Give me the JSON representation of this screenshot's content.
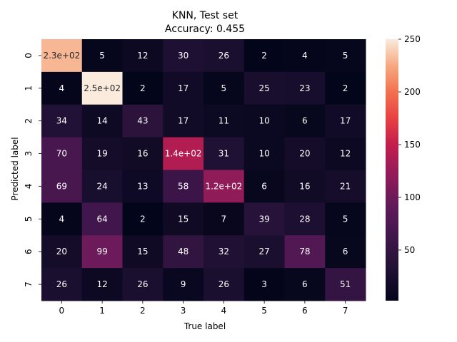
{
  "chart_data": {
    "type": "heatmap",
    "title_line1": "KNN, Test set",
    "title_line2": "Accuracy: 0.455",
    "xlabel": "True label",
    "ylabel": "Predicted label",
    "x_categories": [
      "0",
      "1",
      "2",
      "3",
      "4",
      "5",
      "6",
      "7"
    ],
    "y_categories": [
      "0",
      "1",
      "2",
      "3",
      "4",
      "5",
      "6",
      "7"
    ],
    "values": [
      [
        230,
        5,
        12,
        30,
        26,
        2,
        4,
        5
      ],
      [
        4,
        250,
        2,
        17,
        5,
        25,
        23,
        2
      ],
      [
        34,
        14,
        43,
        17,
        11,
        10,
        6,
        17
      ],
      [
        70,
        19,
        16,
        140,
        31,
        10,
        20,
        12
      ],
      [
        69,
        24,
        13,
        58,
        120,
        6,
        16,
        21
      ],
      [
        4,
        64,
        2,
        15,
        7,
        39,
        28,
        5
      ],
      [
        20,
        99,
        15,
        48,
        32,
        27,
        78,
        6
      ],
      [
        26,
        12,
        26,
        9,
        26,
        3,
        6,
        51
      ]
    ],
    "annotations": [
      [
        "2.3e+02",
        "5",
        "12",
        "30",
        "26",
        "2",
        "4",
        "5"
      ],
      [
        "4",
        "2.5e+02",
        "2",
        "17",
        "5",
        "25",
        "23",
        "2"
      ],
      [
        "34",
        "14",
        "43",
        "17",
        "11",
        "10",
        "6",
        "17"
      ],
      [
        "70",
        "19",
        "16",
        "1.4e+02",
        "31",
        "10",
        "20",
        "12"
      ],
      [
        "69",
        "24",
        "13",
        "58",
        "1.2e+02",
        "6",
        "16",
        "21"
      ],
      [
        "4",
        "64",
        "2",
        "15",
        "7",
        "39",
        "28",
        "5"
      ],
      [
        "20",
        "99",
        "15",
        "48",
        "32",
        "27",
        "78",
        "6"
      ],
      [
        "26",
        "12",
        "26",
        "9",
        "26",
        "3",
        "6",
        "51"
      ]
    ],
    "colorbar": {
      "min": 2,
      "max": 250,
      "ticks": [
        50,
        100,
        150,
        200,
        250
      ],
      "colormap": "rocket"
    }
  }
}
